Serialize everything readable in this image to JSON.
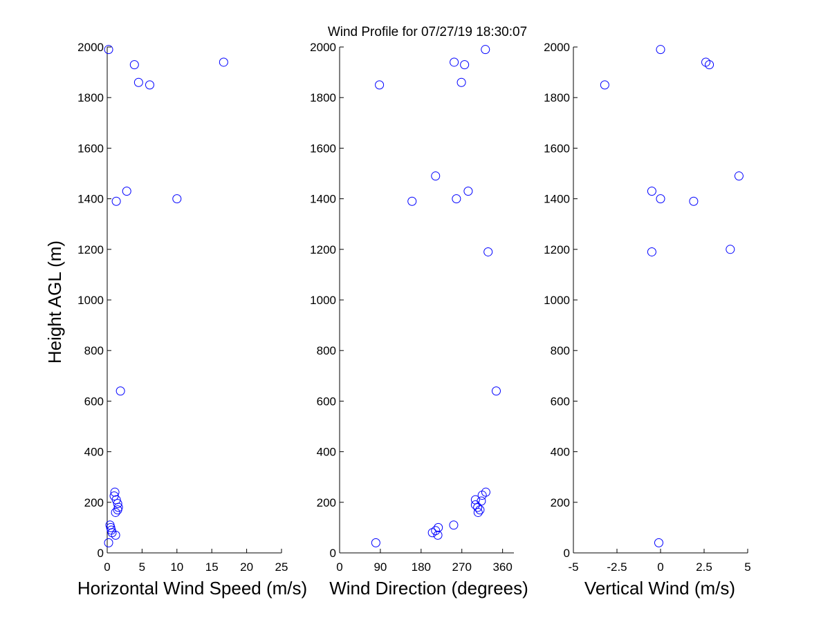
{
  "title": "Wind Profile for  07/27/19 18:30:07",
  "ylabel": "Height AGL (m)",
  "chart_data": [
    {
      "type": "scatter",
      "xlabel": "Horizontal Wind Speed (m/s)",
      "ylabel": "Height AGL (m)",
      "xlim": [
        0,
        25
      ],
      "ylim": [
        0,
        2000
      ],
      "xticks": [
        0,
        5,
        10,
        15,
        20,
        25
      ],
      "xtick_labels": [
        "0",
        "5",
        "10",
        "15",
        "20",
        "25"
      ],
      "yticks": [
        0,
        200,
        400,
        600,
        800,
        1000,
        1200,
        1400,
        1600,
        1800,
        2000
      ],
      "ytick_labels": [
        "0",
        "200",
        "400",
        "600",
        "800",
        "1000",
        "1200",
        "1400",
        "1600",
        "1800",
        "2000"
      ],
      "color": "#0000ff",
      "grid": false,
      "points": [
        {
          "x": 0.2,
          "y": 1990
        },
        {
          "x": 3.9,
          "y": 1930
        },
        {
          "x": 16.7,
          "y": 1940
        },
        {
          "x": 4.5,
          "y": 1860
        },
        {
          "x": 6.1,
          "y": 1850
        },
        {
          "x": 2.8,
          "y": 1430
        },
        {
          "x": 1.3,
          "y": 1390
        },
        {
          "x": 10.0,
          "y": 1400
        },
        {
          "x": 1.9,
          "y": 640
        },
        {
          "x": 1.1,
          "y": 240
        },
        {
          "x": 1.0,
          "y": 225
        },
        {
          "x": 1.3,
          "y": 210
        },
        {
          "x": 1.5,
          "y": 195
        },
        {
          "x": 1.6,
          "y": 180
        },
        {
          "x": 1.5,
          "y": 170
        },
        {
          "x": 1.2,
          "y": 160
        },
        {
          "x": 0.4,
          "y": 110
        },
        {
          "x": 0.5,
          "y": 100
        },
        {
          "x": 0.6,
          "y": 90
        },
        {
          "x": 0.7,
          "y": 80
        },
        {
          "x": 1.2,
          "y": 70
        },
        {
          "x": 0.2,
          "y": 40
        }
      ]
    },
    {
      "type": "scatter",
      "xlabel": "Wind Direction (degrees)",
      "xlim": [
        0,
        385
      ],
      "ylim": [
        0,
        2000
      ],
      "xticks": [
        0,
        90,
        180,
        270,
        360
      ],
      "xtick_labels": [
        "0",
        "90",
        "180",
        "270",
        "360"
      ],
      "yticks": [
        0,
        200,
        400,
        600,
        800,
        1000,
        1200,
        1400,
        1600,
        1800,
        2000
      ],
      "ytick_labels": [
        "0",
        "200",
        "400",
        "600",
        "800",
        "1000",
        "1200",
        "1400",
        "1600",
        "1800",
        "2000"
      ],
      "color": "#0000ff",
      "grid": false,
      "points": [
        {
          "x": 322,
          "y": 1990
        },
        {
          "x": 253,
          "y": 1940
        },
        {
          "x": 276,
          "y": 1930
        },
        {
          "x": 269,
          "y": 1860
        },
        {
          "x": 88,
          "y": 1850
        },
        {
          "x": 212,
          "y": 1490
        },
        {
          "x": 284,
          "y": 1430
        },
        {
          "x": 160,
          "y": 1390
        },
        {
          "x": 258,
          "y": 1400
        },
        {
          "x": 328,
          "y": 1190
        },
        {
          "x": 346,
          "y": 640
        },
        {
          "x": 323,
          "y": 240
        },
        {
          "x": 315,
          "y": 228
        },
        {
          "x": 300,
          "y": 210
        },
        {
          "x": 313,
          "y": 205
        },
        {
          "x": 300,
          "y": 190
        },
        {
          "x": 305,
          "y": 180
        },
        {
          "x": 310,
          "y": 170
        },
        {
          "x": 306,
          "y": 160
        },
        {
          "x": 252,
          "y": 110
        },
        {
          "x": 218,
          "y": 100
        },
        {
          "x": 212,
          "y": 88
        },
        {
          "x": 205,
          "y": 80
        },
        {
          "x": 217,
          "y": 70
        },
        {
          "x": 80,
          "y": 40
        }
      ]
    },
    {
      "type": "scatter",
      "xlabel": "Vertical Wind (m/s)",
      "xlim": [
        -5,
        5
      ],
      "ylim": [
        0,
        2000
      ],
      "xticks": [
        -5,
        -2.5,
        0,
        2.5,
        5
      ],
      "xtick_labels": [
        "-5",
        "-2.5",
        "0",
        "2.5",
        "5"
      ],
      "yticks": [
        0,
        200,
        400,
        600,
        800,
        1000,
        1200,
        1400,
        1600,
        1800,
        2000
      ],
      "ytick_labels": [
        "0",
        "200",
        "400",
        "600",
        "800",
        "1000",
        "1200",
        "1400",
        "1600",
        "1800",
        "2000"
      ],
      "color": "#0000ff",
      "grid": false,
      "points": [
        {
          "x": 0.0,
          "y": 1990
        },
        {
          "x": 2.6,
          "y": 1940
        },
        {
          "x": 2.8,
          "y": 1930
        },
        {
          "x": -3.2,
          "y": 1850
        },
        {
          "x": 4.5,
          "y": 1490
        },
        {
          "x": -0.5,
          "y": 1430
        },
        {
          "x": 0.0,
          "y": 1400
        },
        {
          "x": 1.9,
          "y": 1390
        },
        {
          "x": 4.0,
          "y": 1200
        },
        {
          "x": -0.5,
          "y": 1190
        },
        {
          "x": -0.1,
          "y": 40
        }
      ]
    }
  ]
}
